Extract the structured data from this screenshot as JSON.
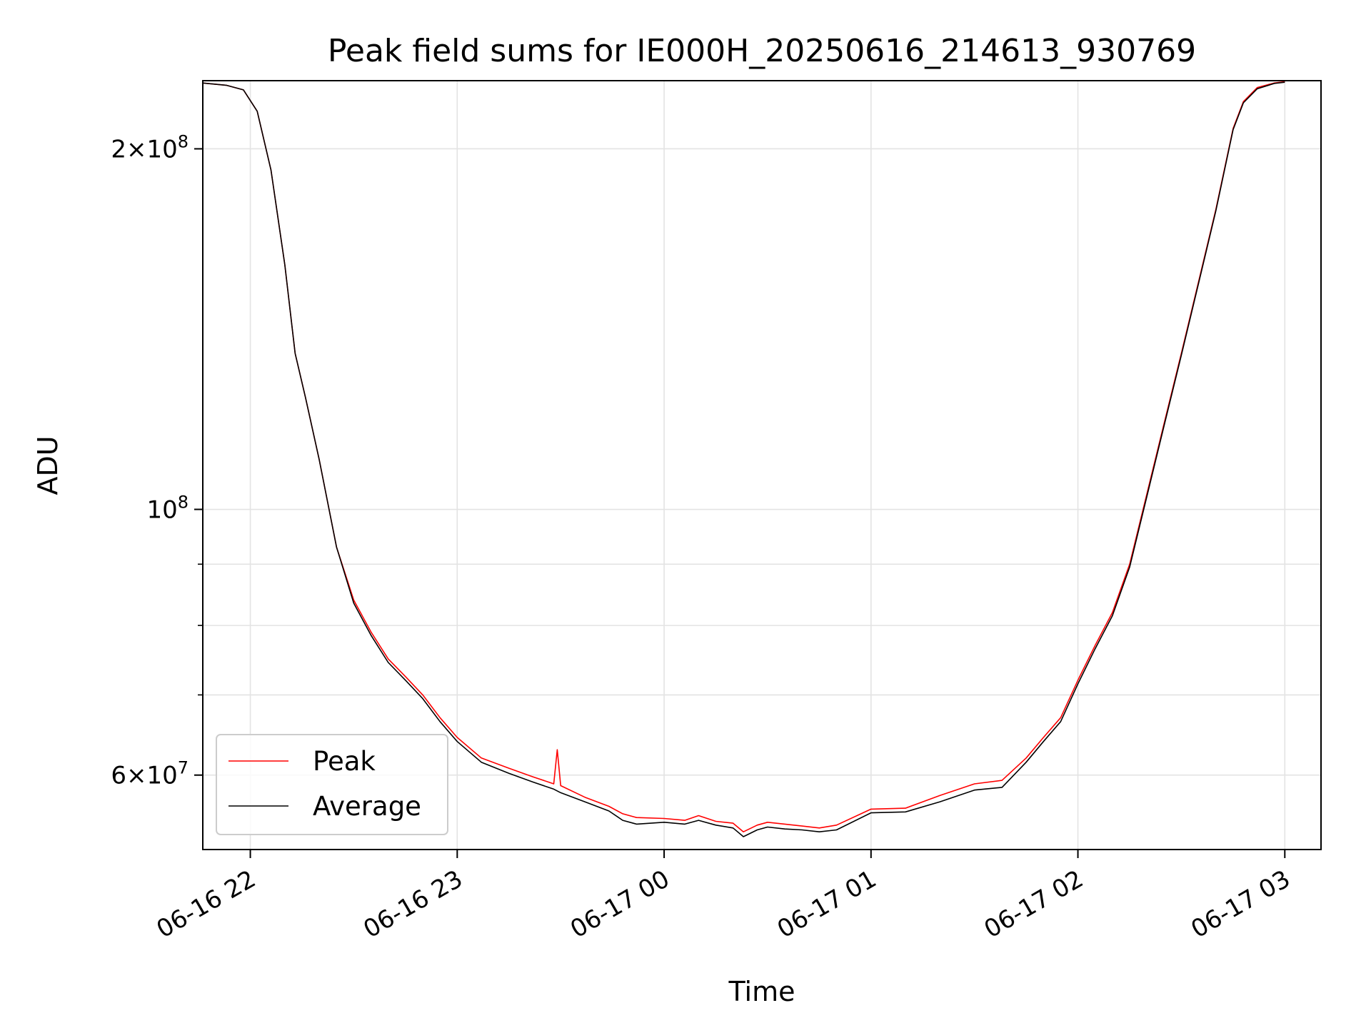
{
  "chart_data": {
    "type": "line",
    "title": "Peak field sums for IE000H_20250616_214613_930769",
    "xlabel": "Time",
    "ylabel": "ADU",
    "y_scale": "log",
    "ylim": [
      52000000,
      228000000
    ],
    "xlim": [
      "2025-06-16T21:46:13",
      "2025-06-17T03:10:30"
    ],
    "x_ticks": [
      {
        "value": "2025-06-16T22:00",
        "label": "06-16 22"
      },
      {
        "value": "2025-06-16T23:00",
        "label": "06-16 23"
      },
      {
        "value": "2025-06-17T00:00",
        "label": "06-17 00"
      },
      {
        "value": "2025-06-17T01:00",
        "label": "06-17 01"
      },
      {
        "value": "2025-06-17T02:00",
        "label": "06-17 02"
      },
      {
        "value": "2025-06-17T03:00",
        "label": "06-17 03"
      }
    ],
    "y_ticks": [
      {
        "value": 60000000,
        "mantissa": "6",
        "exponent": "7"
      },
      {
        "value": 100000000,
        "mantissa": "",
        "exponent": "8"
      },
      {
        "value": 200000000,
        "mantissa": "2",
        "exponent": "8"
      }
    ],
    "y_minor_ticks": [
      70000000,
      80000000,
      90000000
    ],
    "grid": true,
    "legend_position": "lower-left",
    "series": [
      {
        "name": "Peak",
        "color": "#ff0000",
        "x": [
          "2025-06-16T21:46",
          "2025-06-16T21:53",
          "2025-06-16T21:58",
          "2025-06-16T22:02",
          "2025-06-16T22:06",
          "2025-06-16T22:10",
          "2025-06-16T22:13",
          "2025-06-16T22:16",
          "2025-06-16T22:20",
          "2025-06-16T22:25",
          "2025-06-16T22:30",
          "2025-06-16T22:35",
          "2025-06-16T22:40",
          "2025-06-16T22:45",
          "2025-06-16T22:50",
          "2025-06-16T22:55",
          "2025-06-16T23:00",
          "2025-06-16T23:07",
          "2025-06-16T23:15",
          "2025-06-16T23:22",
          "2025-06-16T23:28",
          "2025-06-16T23:29",
          "2025-06-16T23:30",
          "2025-06-16T23:37",
          "2025-06-16T23:44",
          "2025-06-16T23:48",
          "2025-06-16T23:52",
          "2025-06-17T00:00",
          "2025-06-17T00:06",
          "2025-06-17T00:10",
          "2025-06-17T00:15",
          "2025-06-17T00:20",
          "2025-06-17T00:23",
          "2025-06-17T00:27",
          "2025-06-17T00:30",
          "2025-06-17T00:35",
          "2025-06-17T00:40",
          "2025-06-17T00:45",
          "2025-06-17T00:50",
          "2025-06-17T01:00",
          "2025-06-17T01:10",
          "2025-06-17T01:20",
          "2025-06-17T01:30",
          "2025-06-17T01:38",
          "2025-06-17T01:45",
          "2025-06-17T01:50",
          "2025-06-17T01:55",
          "2025-06-17T02:00",
          "2025-06-17T02:05",
          "2025-06-17T02:10",
          "2025-06-17T02:15",
          "2025-06-17T02:20",
          "2025-06-17T02:25",
          "2025-06-17T02:30",
          "2025-06-17T02:35",
          "2025-06-17T02:40",
          "2025-06-17T02:45",
          "2025-06-17T02:48",
          "2025-06-17T02:52",
          "2025-06-17T02:57",
          "2025-06-17T03:00"
        ],
        "y": [
          227000000,
          226000000,
          224000000,
          215000000,
          192000000,
          160000000,
          135000000,
          124000000,
          110000000,
          93000000,
          84000000,
          79000000,
          75000000,
          72500000,
          70000000,
          67000000,
          64500000,
          62000000,
          60800000,
          59800000,
          59000000,
          63000000,
          58800000,
          57500000,
          56500000,
          55700000,
          55300000,
          55200000,
          55000000,
          55500000,
          54900000,
          54700000,
          53800000,
          54500000,
          54800000,
          54600000,
          54400000,
          54200000,
          54500000,
          56200000,
          56300000,
          57700000,
          59000000,
          59400000,
          62000000,
          64500000,
          67000000,
          72000000,
          77000000,
          82000000,
          90000000,
          103000000,
          118000000,
          135000000,
          155000000,
          178000000,
          208000000,
          219000000,
          225000000,
          227000000,
          227500000
        ]
      },
      {
        "name": "Average",
        "color": "#000000",
        "x": [
          "2025-06-16T21:46",
          "2025-06-16T21:53",
          "2025-06-16T21:58",
          "2025-06-16T22:02",
          "2025-06-16T22:06",
          "2025-06-16T22:10",
          "2025-06-16T22:13",
          "2025-06-16T22:16",
          "2025-06-16T22:20",
          "2025-06-16T22:25",
          "2025-06-16T22:30",
          "2025-06-16T22:35",
          "2025-06-16T22:40",
          "2025-06-16T22:45",
          "2025-06-16T22:50",
          "2025-06-16T22:55",
          "2025-06-16T23:00",
          "2025-06-16T23:07",
          "2025-06-16T23:15",
          "2025-06-16T23:22",
          "2025-06-16T23:28",
          "2025-06-16T23:30",
          "2025-06-16T23:37",
          "2025-06-16T23:44",
          "2025-06-16T23:48",
          "2025-06-16T23:52",
          "2025-06-17T00:00",
          "2025-06-17T00:06",
          "2025-06-17T00:10",
          "2025-06-17T00:15",
          "2025-06-17T00:20",
          "2025-06-17T00:23",
          "2025-06-17T00:27",
          "2025-06-17T00:30",
          "2025-06-17T00:35",
          "2025-06-17T00:40",
          "2025-06-17T00:45",
          "2025-06-17T00:50",
          "2025-06-17T01:00",
          "2025-06-17T01:10",
          "2025-06-17T01:20",
          "2025-06-17T01:30",
          "2025-06-17T01:38",
          "2025-06-17T01:45",
          "2025-06-17T01:50",
          "2025-06-17T01:55",
          "2025-06-17T02:00",
          "2025-06-17T02:05",
          "2025-06-17T02:10",
          "2025-06-17T02:15",
          "2025-06-17T02:20",
          "2025-06-17T02:25",
          "2025-06-17T02:30",
          "2025-06-17T02:35",
          "2025-06-17T02:40",
          "2025-06-17T02:45",
          "2025-06-17T02:48",
          "2025-06-17T02:52",
          "2025-06-17T02:57",
          "2025-06-17T03:00"
        ],
        "y": [
          227000000,
          226000000,
          224000000,
          215000000,
          192000000,
          160000000,
          135000000,
          124000000,
          110000000,
          93000000,
          83500000,
          78500000,
          74500000,
          72000000,
          69500000,
          66500000,
          64000000,
          61500000,
          60200000,
          59200000,
          58400000,
          58000000,
          57000000,
          56000000,
          55000000,
          54600000,
          54800000,
          54600000,
          55000000,
          54500000,
          54200000,
          53300000,
          54000000,
          54300000,
          54100000,
          54000000,
          53800000,
          54000000,
          55800000,
          55900000,
          57000000,
          58300000,
          58600000,
          61500000,
          64000000,
          66500000,
          71500000,
          76500000,
          81500000,
          89500000,
          102500000,
          117500000,
          134500000,
          154500000,
          177500000,
          207500000,
          218500000,
          224500000,
          226800000,
          227300000
        ]
      }
    ]
  }
}
